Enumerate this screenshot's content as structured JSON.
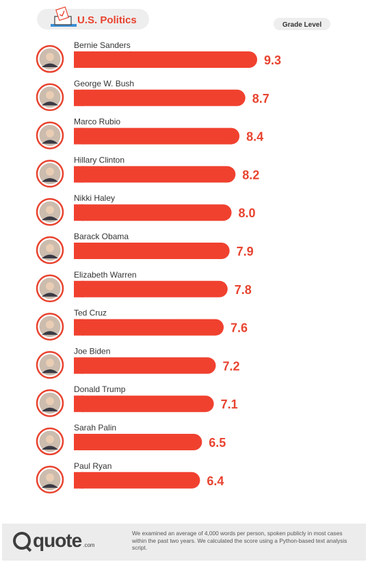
{
  "header": {
    "title": "U.S. Politics",
    "grade_label": "Grade Level"
  },
  "colors": {
    "accent": "#f0412f",
    "value_text": "#e8432f",
    "name_text": "#333333"
  },
  "chart_data": {
    "type": "bar",
    "orientation": "horizontal",
    "title": "U.S. Politics",
    "value_label": "Grade Level",
    "categories": [
      "Bernie Sanders",
      "George W. Bush",
      "Marco Rubio",
      "Hillary Clinton",
      "Nikki Haley",
      "Barack Obama",
      "Elizabeth Warren",
      "Ted Cruz",
      "Joe Biden",
      "Donald Trump",
      "Sarah Palin",
      "Paul Ryan"
    ],
    "values": [
      9.3,
      8.7,
      8.4,
      8.2,
      8.0,
      7.9,
      7.8,
      7.6,
      7.2,
      7.1,
      6.5,
      6.4
    ],
    "value_labels": [
      "9.3",
      "8.7",
      "8.4",
      "8.2",
      "8.0",
      "7.9",
      "7.8",
      "7.6",
      "7.2",
      "7.1",
      "6.5",
      "6.4"
    ],
    "grid": false
  },
  "footer": {
    "logo_text": "quote",
    "logo_suffix": ".com",
    "note": "We examined an average of 4,000 words per person, spoken publicly in most cases within the past two years. We calculated the score using a Python-based text analysis script."
  }
}
